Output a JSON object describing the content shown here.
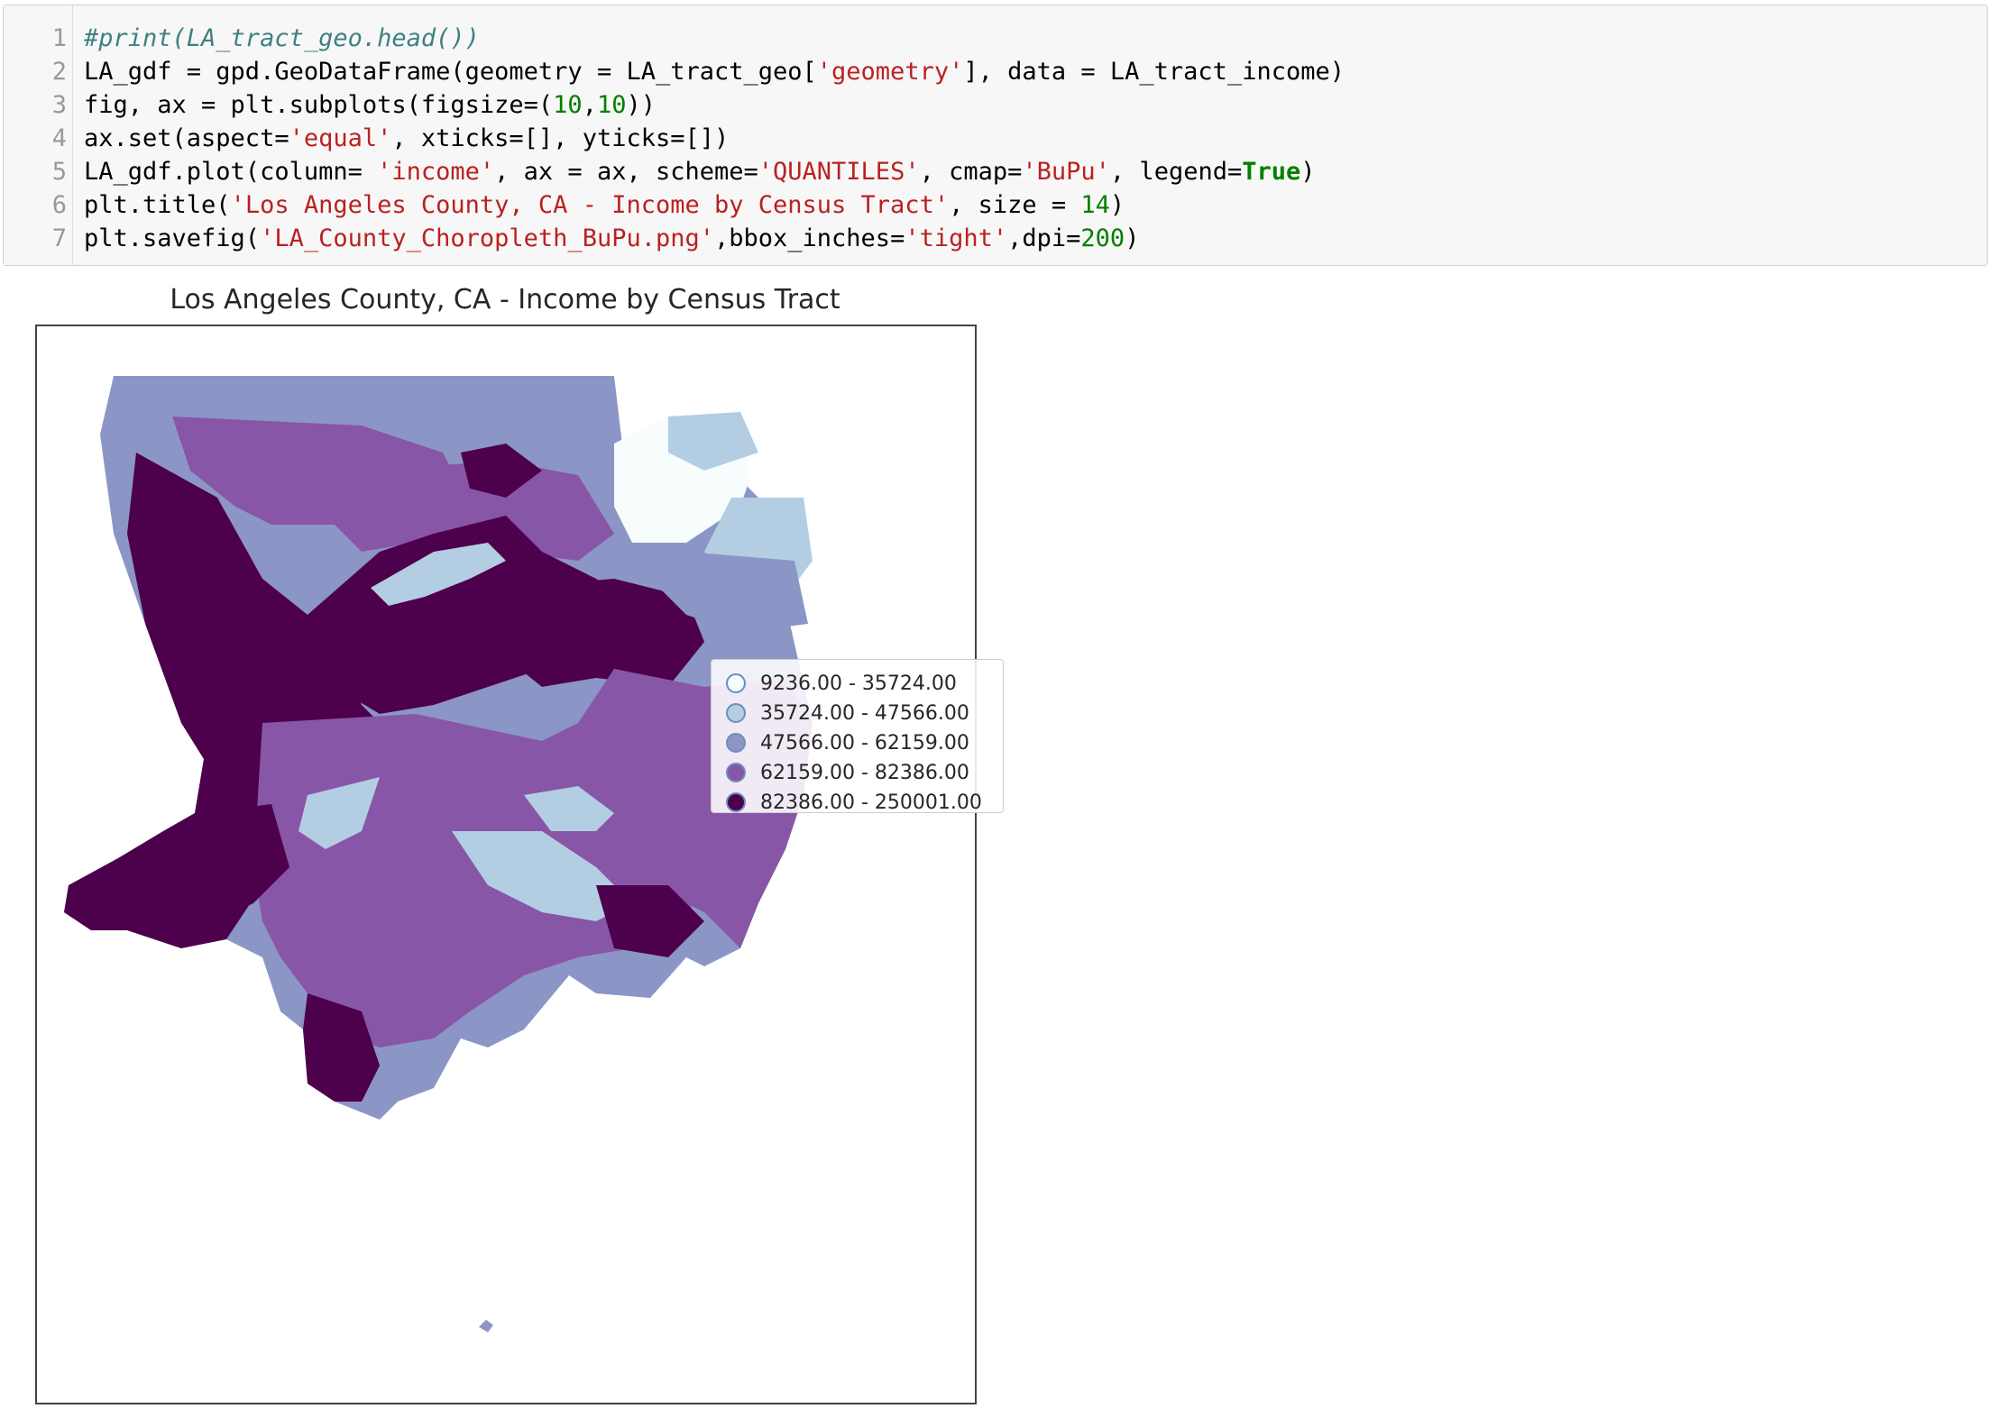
{
  "code_cell": {
    "line_numbers": [
      "1",
      "2",
      "3",
      "4",
      "5",
      "6",
      "7"
    ],
    "lines": [
      [
        {
          "t": "#print(LA_tract_geo.head())",
          "c": "comment"
        }
      ],
      [
        {
          "t": "LA_gdf = gpd.GeoDataFrame(geometry = LA_tract_geo[",
          "c": ""
        },
        {
          "t": "'geometry'",
          "c": "str"
        },
        {
          "t": "], data = LA_tract_income)",
          "c": ""
        }
      ],
      [
        {
          "t": "fig, ax = plt.subplots(figsize=(",
          "c": ""
        },
        {
          "t": "10",
          "c": "num"
        },
        {
          "t": ",",
          "c": ""
        },
        {
          "t": "10",
          "c": "num"
        },
        {
          "t": "))",
          "c": ""
        }
      ],
      [
        {
          "t": "ax.set(aspect=",
          "c": ""
        },
        {
          "t": "'equal'",
          "c": "str"
        },
        {
          "t": ", xticks=[], yticks=[])",
          "c": ""
        }
      ],
      [
        {
          "t": "LA_gdf.plot(column= ",
          "c": ""
        },
        {
          "t": "'income'",
          "c": "str"
        },
        {
          "t": ", ax = ax, scheme=",
          "c": ""
        },
        {
          "t": "'QUANTILES'",
          "c": "str"
        },
        {
          "t": ", cmap=",
          "c": ""
        },
        {
          "t": "'BuPu'",
          "c": "str"
        },
        {
          "t": ", legend=",
          "c": ""
        },
        {
          "t": "True",
          "c": "kw"
        },
        {
          "t": ")",
          "c": ""
        }
      ],
      [
        {
          "t": "plt.title(",
          "c": ""
        },
        {
          "t": "'Los Angeles County, CA - Income by Census Tract'",
          "c": "str"
        },
        {
          "t": ", size = ",
          "c": ""
        },
        {
          "t": "14",
          "c": "num"
        },
        {
          "t": ")",
          "c": ""
        }
      ],
      [
        {
          "t": "plt.savefig(",
          "c": ""
        },
        {
          "t": "'LA_County_Choropleth_BuPu.png'",
          "c": "str"
        },
        {
          "t": ",bbox_inches=",
          "c": ""
        },
        {
          "t": "'tight'",
          "c": "str"
        },
        {
          "t": ",dpi=",
          "c": ""
        },
        {
          "t": "200",
          "c": "num"
        },
        {
          "t": ")",
          "c": ""
        }
      ]
    ]
  },
  "plot": {
    "title": "Los Angeles County, CA - Income by Census Tract",
    "colormap": "BuPu",
    "legend": [
      {
        "label": "9236.00 - 35724.00",
        "color": "#f7fcfd"
      },
      {
        "label": "35724.00 - 47566.00",
        "color": "#b3cde3"
      },
      {
        "label": "47566.00 - 62159.00",
        "color": "#8c96c6"
      },
      {
        "label": "62159.00 - 82386.00",
        "color": "#8856a7"
      },
      {
        "label": "82386.00 - 250001.00",
        "color": "#4d004b"
      }
    ]
  }
}
